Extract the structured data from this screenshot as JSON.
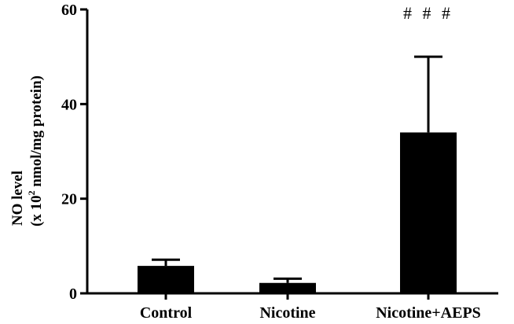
{
  "chart_data": {
    "type": "bar",
    "categories": [
      "Control",
      "Nicotine",
      "Nicotine+AEPS"
    ],
    "values": [
      5.8,
      2.2,
      34.0
    ],
    "errors": [
      1.3,
      0.9,
      16.0
    ],
    "ylim": [
      0,
      60
    ],
    "yticks": [
      0,
      20,
      40,
      60
    ],
    "ylabel_line1": "NO level",
    "ylabel_line2_pre": "(x 10",
    "ylabel_line2_sup": "2",
    "ylabel_line2_post": " nmol/mg protein)",
    "annotations": [
      {
        "category": "Nicotine+AEPS",
        "text": "# # #"
      }
    ],
    "bar_color": "#000000",
    "grid": false
  }
}
